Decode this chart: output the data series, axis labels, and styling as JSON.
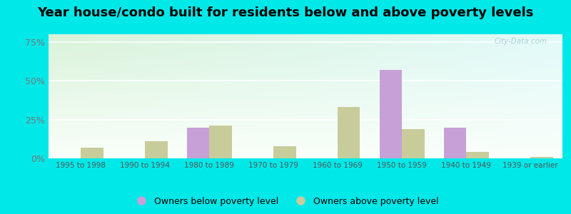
{
  "title": "Year house/condo built for residents below and above poverty levels",
  "categories": [
    "1995 to 1998",
    "1990 to 1994",
    "1980 to 1989",
    "1970 to 1979",
    "1960 to 1969",
    "1950 to 1959",
    "1940 to 1949",
    "1939 or earlier"
  ],
  "below_poverty": [
    0,
    0,
    20,
    0,
    0,
    57,
    20,
    0
  ],
  "above_poverty": [
    7,
    11,
    21,
    8,
    33,
    19,
    4,
    1
  ],
  "below_color": "#c8a0d8",
  "above_color": "#c8cc9a",
  "ylabel_ticks": [
    "0%",
    "25%",
    "50%",
    "75%"
  ],
  "yticks": [
    0,
    25,
    50,
    75
  ],
  "ylim": [
    0,
    80
  ],
  "outer_background": "#00e8e8",
  "legend_below": "Owners below poverty level",
  "legend_above": "Owners above poverty level",
  "bar_width": 0.35,
  "title_fontsize": 13,
  "watermark": "City-Data.com"
}
